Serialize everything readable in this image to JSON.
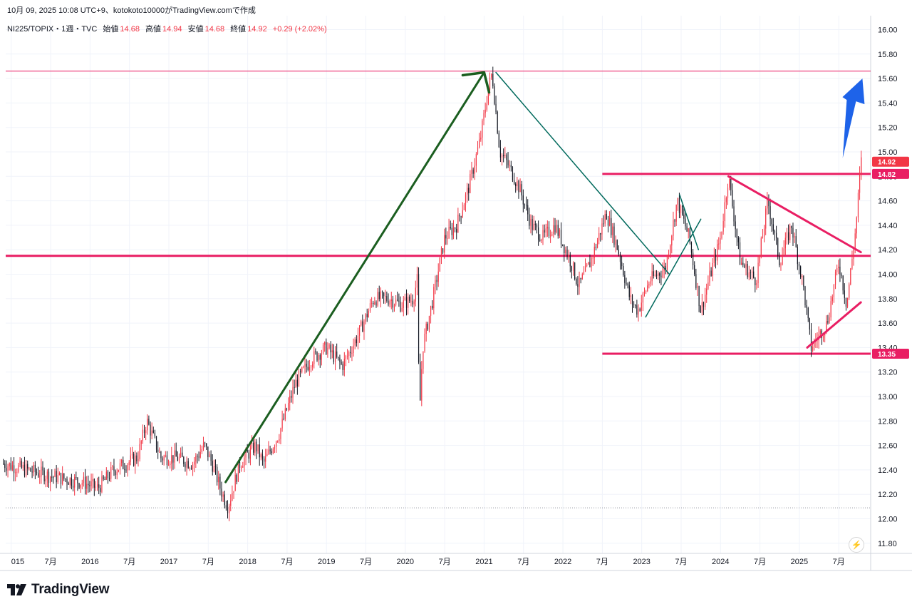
{
  "caption": "10月 09, 2025 10:08 UTC+9、kotokoto10000がTradingView.comで作成",
  "legend": {
    "symbol": "NI225/TOPIX・1週・TVC",
    "open_label": "始値",
    "open": "14.68",
    "high_label": "高値",
    "high": "14.94",
    "low_label": "安値",
    "low": "14.68",
    "close_label": "終値",
    "close": "14.92",
    "change": "+0.29 (+2.02%)"
  },
  "brand": {
    "name": "TradingView"
  },
  "chart_data": {
    "type": "candlestick",
    "title": "NI225/TOPIX",
    "ylim": [
      11.75,
      16.1
    ],
    "y_ticks": [
      "11.80",
      "12.00",
      "12.20",
      "12.40",
      "12.60",
      "12.80",
      "13.00",
      "13.20",
      "13.40",
      "13.60",
      "13.80",
      "14.00",
      "14.20",
      "14.40",
      "14.60",
      "14.80",
      "15.00",
      "15.20",
      "15.40",
      "15.60",
      "15.80",
      "16.00"
    ],
    "x_ticks": [
      {
        "label": "015",
        "t": 2015.0
      },
      {
        "label": "7月",
        "t": 2015.5
      },
      {
        "label": "2016",
        "t": 2016.0
      },
      {
        "label": "7月",
        "t": 2016.5
      },
      {
        "label": "2017",
        "t": 2017.0
      },
      {
        "label": "7月",
        "t": 2017.5
      },
      {
        "label": "2018",
        "t": 2018.0
      },
      {
        "label": "7月",
        "t": 2018.5
      },
      {
        "label": "2019",
        "t": 2019.0
      },
      {
        "label": "7月",
        "t": 2019.5
      },
      {
        "label": "2020",
        "t": 2020.0
      },
      {
        "label": "7月",
        "t": 2020.5
      },
      {
        "label": "2021",
        "t": 2021.0
      },
      {
        "label": "7月",
        "t": 2021.5
      },
      {
        "label": "2022",
        "t": 2022.0
      },
      {
        "label": "7月",
        "t": 2022.5
      },
      {
        "label": "2023",
        "t": 2023.0
      },
      {
        "label": "7月",
        "t": 2023.5
      },
      {
        "label": "2024",
        "t": 2024.0
      },
      {
        "label": "7月",
        "t": 2024.5
      },
      {
        "label": "2025",
        "t": 2025.0
      },
      {
        "label": "7月",
        "t": 2025.5
      }
    ],
    "price_path": [
      [
        2014.9,
        12.45
      ],
      [
        2015.2,
        12.4
      ],
      [
        2015.5,
        12.35
      ],
      [
        2015.9,
        12.3
      ],
      [
        2016.1,
        12.25
      ],
      [
        2016.3,
        12.4
      ],
      [
        2016.6,
        12.5
      ],
      [
        2016.72,
        12.8
      ],
      [
        2016.9,
        12.5
      ],
      [
        2017.1,
        12.5
      ],
      [
        2017.3,
        12.45
      ],
      [
        2017.45,
        12.6
      ],
      [
        2017.55,
        12.45
      ],
      [
        2017.68,
        12.2
      ],
      [
        2017.75,
        12.1
      ],
      [
        2017.9,
        12.45
      ],
      [
        2018.1,
        12.6
      ],
      [
        2018.2,
        12.45
      ],
      [
        2018.4,
        12.7
      ],
      [
        2018.6,
        13.1
      ],
      [
        2018.8,
        13.3
      ],
      [
        2019.0,
        13.4
      ],
      [
        2019.2,
        13.25
      ],
      [
        2019.4,
        13.5
      ],
      [
        2019.6,
        13.8
      ],
      [
        2019.8,
        13.8
      ],
      [
        2019.95,
        13.75
      ],
      [
        2020.1,
        13.8
      ],
      [
        2020.15,
        13.95
      ],
      [
        2020.18,
        12.85
      ],
      [
        2020.22,
        13.4
      ],
      [
        2020.35,
        13.8
      ],
      [
        2020.5,
        14.3
      ],
      [
        2020.65,
        14.4
      ],
      [
        2020.8,
        14.7
      ],
      [
        2020.95,
        15.1
      ],
      [
        2021.05,
        15.5
      ],
      [
        2021.1,
        15.65
      ],
      [
        2021.2,
        15.0
      ],
      [
        2021.3,
        14.9
      ],
      [
        2021.45,
        14.7
      ],
      [
        2021.6,
        14.4
      ],
      [
        2021.75,
        14.3
      ],
      [
        2021.9,
        14.4
      ],
      [
        2022.1,
        14.1
      ],
      [
        2022.2,
        13.9
      ],
      [
        2022.35,
        14.1
      ],
      [
        2022.55,
        14.5
      ],
      [
        2022.7,
        14.2
      ],
      [
        2022.85,
        13.8
      ],
      [
        2022.95,
        13.7
      ],
      [
        2023.1,
        13.95
      ],
      [
        2023.3,
        14.05
      ],
      [
        2023.45,
        14.6
      ],
      [
        2023.6,
        14.3
      ],
      [
        2023.75,
        13.7
      ],
      [
        2023.85,
        13.95
      ],
      [
        2024.0,
        14.3
      ],
      [
        2024.1,
        14.8
      ],
      [
        2024.25,
        14.1
      ],
      [
        2024.45,
        13.95
      ],
      [
        2024.6,
        14.6
      ],
      [
        2024.75,
        14.1
      ],
      [
        2024.9,
        14.4
      ],
      [
        2025.05,
        13.9
      ],
      [
        2025.15,
        13.4
      ],
      [
        2025.35,
        13.6
      ],
      [
        2025.5,
        14.1
      ],
      [
        2025.6,
        13.75
      ],
      [
        2025.72,
        14.4
      ],
      [
        2025.78,
        14.92
      ]
    ],
    "horizontal_lines": [
      {
        "name": "all-time-high-line",
        "value": 15.66,
        "color": "#e91e63",
        "width": 1
      },
      {
        "name": "resistance-line",
        "value": 14.82,
        "color": "#e91e63",
        "width": 3,
        "from": 2022.5
      },
      {
        "name": "middle-support-line",
        "value": 14.15,
        "color": "#e91e63",
        "width": 3
      },
      {
        "name": "bottom-support-line",
        "value": 13.35,
        "color": "#e91e63",
        "width": 3,
        "from": 2022.5
      },
      {
        "name": "base-dotted-line",
        "value": 12.09,
        "color": "#9598a1",
        "width": 1,
        "dotted": true
      }
    ],
    "trend_lines": [
      {
        "name": "uptrend-arrow-line",
        "color": "#1b5e20",
        "width": 3,
        "points": [
          [
            2017.72,
            12.3
          ],
          [
            2021.0,
            15.65
          ]
        ]
      },
      {
        "name": "downtrend-line",
        "color": "#00695c",
        "width": 1.5,
        "points": [
          [
            2021.15,
            15.65
          ],
          [
            2023.35,
            14.0
          ]
        ]
      },
      {
        "name": "breakout-line-a",
        "color": "#00695c",
        "width": 1.5,
        "points": [
          [
            2023.05,
            13.65
          ],
          [
            2023.75,
            14.45
          ]
        ]
      },
      {
        "name": "breakout-line-b",
        "color": "#00695c",
        "width": 1.5,
        "points": [
          [
            2023.48,
            14.65
          ],
          [
            2023.72,
            14.2
          ]
        ]
      },
      {
        "name": "descending-line",
        "color": "#e91e63",
        "width": 3,
        "points": [
          [
            2024.1,
            14.8
          ],
          [
            2025.78,
            14.18
          ]
        ]
      },
      {
        "name": "ascending-line",
        "color": "#e91e63",
        "width": 3,
        "points": [
          [
            2025.1,
            13.4
          ],
          [
            2025.78,
            13.77
          ]
        ]
      }
    ],
    "blue_arrow": {
      "from": [
        2025.55,
        14.95
      ],
      "to": [
        2025.8,
        15.6
      ],
      "color": "#1e63e9"
    },
    "price_tags": [
      {
        "value": 14.92,
        "label": "14.92",
        "color": "#f23645"
      },
      {
        "value": 14.82,
        "label": "14.82",
        "color": "#e91e63"
      },
      {
        "value": 13.35,
        "label": "13.35",
        "color": "#e91e63"
      }
    ]
  }
}
